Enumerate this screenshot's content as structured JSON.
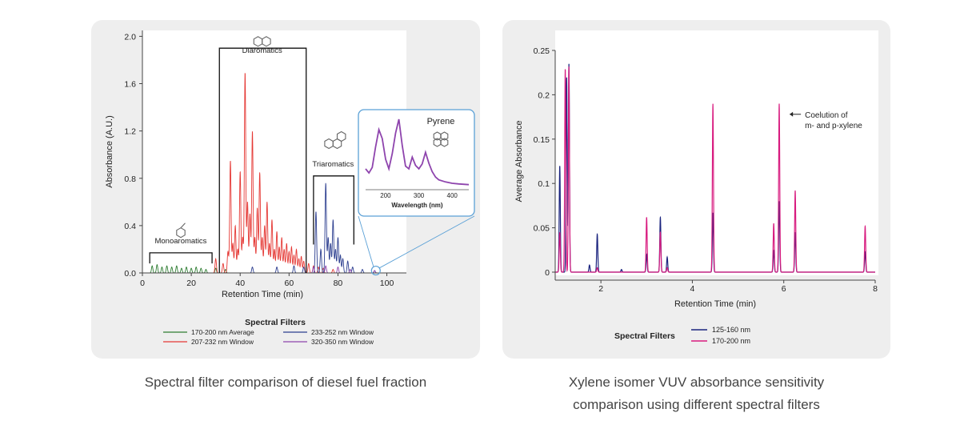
{
  "chart_data": [
    {
      "type": "line",
      "xlabel": "Retention Time (min)",
      "ylabel": "Absorbance (A.U.)",
      "xlim": [
        0,
        108
      ],
      "ylim": [
        0,
        2.05
      ],
      "x_ticks": [
        "0",
        "20",
        "40",
        "60",
        "80",
        "100"
      ],
      "y_ticks": [
        "0.0",
        "0.4",
        "0.8",
        "1.2",
        "1.6",
        "2.0"
      ],
      "grid": false,
      "legend": {
        "title": "Spectral Filters",
        "placement": "bottom",
        "entries": [
          {
            "label": "170-200 nm Average",
            "color": "#2e7d32"
          },
          {
            "label": "233-252 nm Window",
            "color": "#2c3e8f"
          },
          {
            "label": "207-232 nm Window",
            "color": "#e53935"
          },
          {
            "label": "320-350 nm Window",
            "color": "#8e44ad"
          }
        ]
      },
      "annotations": {
        "mono": "Monoaromatics",
        "di": "Diaromatics",
        "tri": "Triaromatics"
      },
      "inset": {
        "title": "Pyrene",
        "xlabel": "Wavelength (nm)",
        "xlim": [
          140,
          450
        ],
        "x_ticks": [
          "200",
          "300",
          "400"
        ],
        "color": "#8e44ad",
        "x": [
          140,
          150,
          160,
          170,
          180,
          190,
          200,
          210,
          220,
          230,
          240,
          250,
          260,
          270,
          280,
          290,
          300,
          310,
          320,
          330,
          340,
          350,
          360,
          380,
          400,
          420,
          450
        ],
        "y": [
          0.28,
          0.22,
          0.3,
          0.6,
          0.85,
          0.72,
          0.42,
          0.28,
          0.5,
          0.8,
          1.0,
          0.62,
          0.32,
          0.28,
          0.45,
          0.33,
          0.28,
          0.35,
          0.52,
          0.36,
          0.24,
          0.16,
          0.12,
          0.09,
          0.07,
          0.06,
          0.05
        ]
      },
      "series": [
        {
          "name": "170-200 nm Average",
          "color": "#2e7d32",
          "peaks": [
            [
              4,
              0.06
            ],
            [
              6,
              0.07
            ],
            [
              8,
              0.05
            ],
            [
              10,
              0.06
            ],
            [
              12,
              0.05
            ],
            [
              14,
              0.06
            ],
            [
              16,
              0.04
            ],
            [
              18,
              0.05
            ],
            [
              20,
              0.04
            ],
            [
              22,
              0.05
            ],
            [
              24,
              0.04
            ],
            [
              26,
              0.03
            ],
            [
              30,
              0.04
            ],
            [
              34,
              0.03
            ]
          ]
        },
        {
          "name": "207-232 nm Window",
          "color": "#e53935",
          "peaks": [
            [
              30,
              0.12
            ],
            [
              33,
              0.08
            ],
            [
              35,
              0.18
            ],
            [
              36,
              0.95
            ],
            [
              37,
              0.25
            ],
            [
              38,
              0.4
            ],
            [
              39,
              0.2
            ],
            [
              40,
              0.86
            ],
            [
              41,
              0.3
            ],
            [
              42,
              1.7
            ],
            [
              43,
              0.6
            ],
            [
              44,
              0.5
            ],
            [
              45,
              1.2
            ],
            [
              46,
              0.3
            ],
            [
              47,
              0.55
            ],
            [
              48,
              0.85
            ],
            [
              49,
              0.3
            ],
            [
              50,
              0.4
            ],
            [
              51,
              0.6
            ],
            [
              52,
              0.25
            ],
            [
              53,
              0.45
            ],
            [
              54,
              0.2
            ],
            [
              55,
              0.35
            ],
            [
              56,
              0.22
            ],
            [
              57,
              0.3
            ],
            [
              58,
              0.2
            ],
            [
              59,
              0.25
            ],
            [
              60,
              0.18
            ],
            [
              61,
              0.22
            ],
            [
              62,
              0.15
            ],
            [
              63,
              0.2
            ],
            [
              64,
              0.12
            ],
            [
              65,
              0.14
            ],
            [
              66,
              0.1
            ],
            [
              68,
              0.08
            ],
            [
              70,
              0.06
            ],
            [
              72,
              0.05
            ],
            [
              74,
              0.04
            ],
            [
              78,
              0.03
            ]
          ]
        },
        {
          "name": "233-252 nm Window",
          "color": "#2c3e8f",
          "peaks": [
            [
              45,
              0.05
            ],
            [
              55,
              0.05
            ],
            [
              62,
              0.06
            ],
            [
              66,
              0.05
            ],
            [
              71,
              0.52
            ],
            [
              73,
              0.2
            ],
            [
              75,
              0.76
            ],
            [
              76,
              0.3
            ],
            [
              77,
              0.25
            ],
            [
              78,
              0.45
            ],
            [
              79,
              0.2
            ],
            [
              80,
              0.3
            ],
            [
              81,
              0.15
            ],
            [
              82,
              0.12
            ],
            [
              84,
              0.1
            ],
            [
              86,
              0.05
            ],
            [
              90,
              0.03
            ],
            [
              95,
              0.02
            ]
          ]
        },
        {
          "name": "320-350 nm Window",
          "color": "#8e44ad",
          "peaks": [
            [
              70,
              0.05
            ],
            [
              75,
              0.06
            ],
            [
              80,
              0.05
            ],
            [
              85,
              0.03
            ],
            [
              95,
              0.02
            ]
          ]
        }
      ]
    },
    {
      "type": "line",
      "xlabel": "Retention Time (min)",
      "ylabel": "Average Absorbance",
      "xlim": [
        1,
        8
      ],
      "ylim": [
        0,
        0.25
      ],
      "x_ticks": [
        "2",
        "4",
        "6",
        "8"
      ],
      "y_ticks": [
        "0",
        "0.05",
        "0.1",
        "0.15",
        "0.2",
        "0.25"
      ],
      "grid": false,
      "legend": {
        "title": "Spectral Filters",
        "placement": "bottom",
        "entries": [
          {
            "label": "125-160 nm",
            "color": "#1a237e"
          },
          {
            "label": "170-200 nm",
            "color": "#d81b7f"
          }
        ]
      },
      "annotation": {
        "line1": "Coelution of",
        "line2": "m- and p-xylene"
      },
      "series": [
        {
          "name": "125-160 nm",
          "color": "#1a237e",
          "peaks": [
            [
              1.1,
              0.12
            ],
            [
              1.25,
              0.22
            ],
            [
              1.3,
              0.235
            ],
            [
              1.75,
              0.008
            ],
            [
              1.92,
              0.043
            ],
            [
              2.45,
              0.003
            ],
            [
              3.0,
              0.02
            ],
            [
              3.3,
              0.062
            ],
            [
              3.45,
              0.017
            ],
            [
              4.45,
              0.067
            ],
            [
              5.78,
              0.025
            ],
            [
              5.9,
              0.08
            ],
            [
              6.25,
              0.045
            ],
            [
              7.78,
              0.023
            ]
          ]
        },
        {
          "name": "170-200 nm",
          "color": "#d81b7f",
          "peaks": [
            [
              1.1,
              0.045
            ],
            [
              1.22,
              0.23
            ],
            [
              1.3,
              0.232
            ],
            [
              1.92,
              0.005
            ],
            [
              3.0,
              0.062
            ],
            [
              3.3,
              0.045
            ],
            [
              3.45,
              0.005
            ],
            [
              4.45,
              0.19
            ],
            [
              5.78,
              0.055
            ],
            [
              5.9,
              0.19
            ],
            [
              6.25,
              0.092
            ],
            [
              7.78,
              0.052
            ]
          ]
        }
      ]
    }
  ],
  "captions": {
    "left": "Spectral filter comparison of diesel fuel fraction",
    "right_line1": "Xylene isomer VUV absorbance sensitivity",
    "right_line2": "comparison using different spectral filters"
  }
}
